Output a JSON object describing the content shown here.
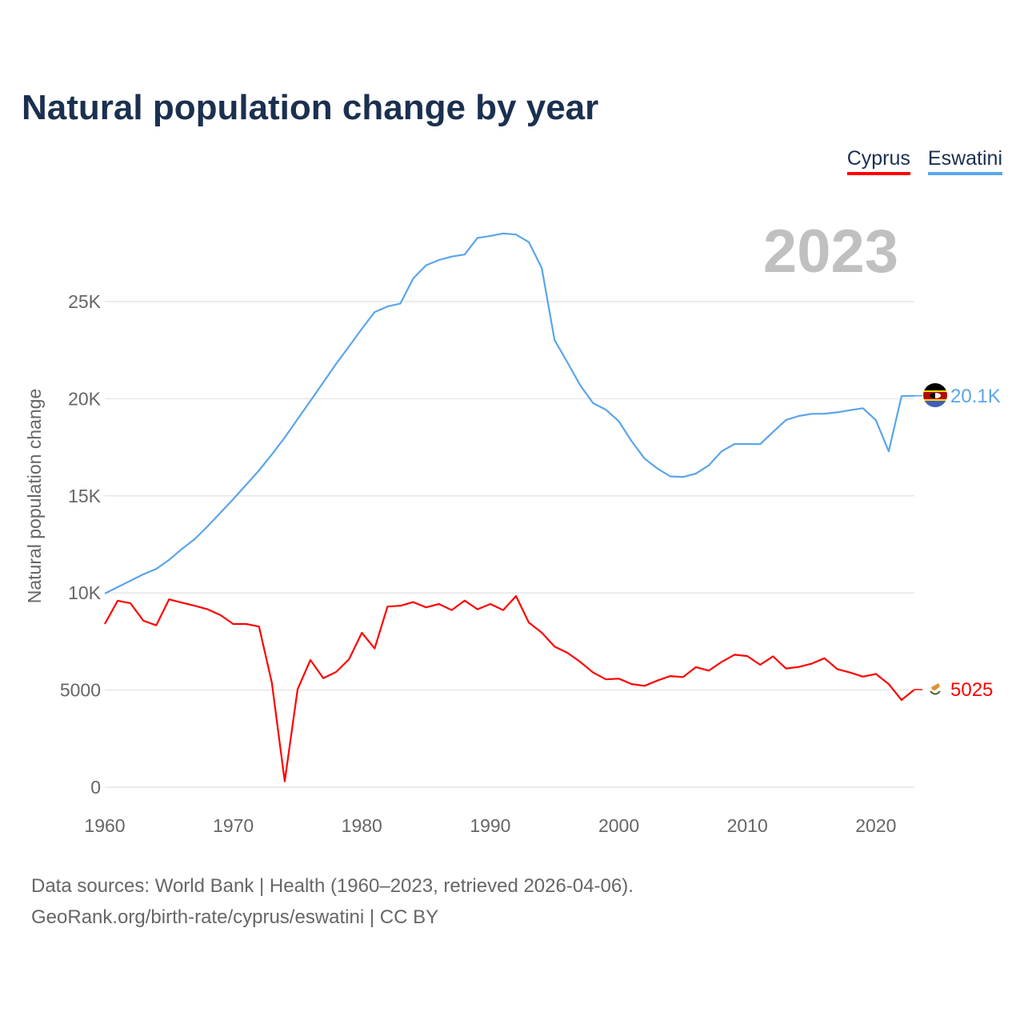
{
  "title": "Natural population change by year",
  "legend": [
    {
      "label": "Cyprus",
      "color": "#ff0000"
    },
    {
      "label": "Eswatini",
      "color": "#5aa5ea"
    }
  ],
  "year_label": "2023",
  "footer": {
    "line1": "Data sources: World Bank | Health (1960–2023, retrieved 2026-04-06).",
    "line2": "GeoRank.org/birth-rate/cyprus/eswatini | CC BY"
  },
  "chart_data": {
    "type": "line",
    "title": "Natural population change by year",
    "xlabel": "",
    "ylabel": "Natural population change",
    "xlim": [
      1960,
      2023
    ],
    "ylim": [
      0,
      29000
    ],
    "x_ticks": [
      "1960",
      "1970",
      "1980",
      "1990",
      "2000",
      "2010",
      "2020"
    ],
    "y_ticks": [
      {
        "value": 0,
        "label": "0"
      },
      {
        "value": 5000,
        "label": "5000"
      },
      {
        "value": 10000,
        "label": "10K"
      },
      {
        "value": 15000,
        "label": "15K"
      },
      {
        "value": 20000,
        "label": "20K"
      },
      {
        "value": 25000,
        "label": "25K"
      }
    ],
    "grid": true,
    "x_start": 1960,
    "series": [
      {
        "name": "Cyprus",
        "color": "#ff0000",
        "end_label": "5025",
        "values": [
          8400,
          9600,
          9470,
          8570,
          8330,
          9670,
          9500,
          9340,
          9160,
          8860,
          8400,
          8400,
          8270,
          5380,
          300,
          5040,
          6550,
          5610,
          5930,
          6580,
          7950,
          7140,
          9300,
          9340,
          9530,
          9260,
          9430,
          9120,
          9610,
          9160,
          9430,
          9120,
          9840,
          8470,
          7960,
          7240,
          6920,
          6450,
          5900,
          5550,
          5590,
          5310,
          5220,
          5490,
          5720,
          5670,
          6180,
          6000,
          6450,
          6820,
          6750,
          6300,
          6740,
          6110,
          6190,
          6360,
          6640,
          6080,
          5900,
          5690,
          5830,
          5310,
          4490,
          5025
        ]
      },
      {
        "name": "Eswatini",
        "color": "#5aa5ea",
        "end_label": "20.1K",
        "values": [
          9970,
          10300,
          10630,
          10960,
          11240,
          11700,
          12270,
          12770,
          13430,
          14130,
          14830,
          15570,
          16310,
          17130,
          18000,
          18950,
          19890,
          20840,
          21790,
          22690,
          23600,
          24460,
          24750,
          24900,
          26190,
          26870,
          27140,
          27320,
          27420,
          28280,
          28380,
          28510,
          28450,
          28060,
          26730,
          23020,
          21870,
          20690,
          19770,
          19430,
          18840,
          17810,
          16920,
          16410,
          16000,
          15970,
          16150,
          16570,
          17290,
          17670,
          17670,
          17660,
          18290,
          18900,
          19110,
          19220,
          19230,
          19300,
          19410,
          19510,
          18900,
          17290,
          20130,
          20150
        ]
      }
    ]
  }
}
